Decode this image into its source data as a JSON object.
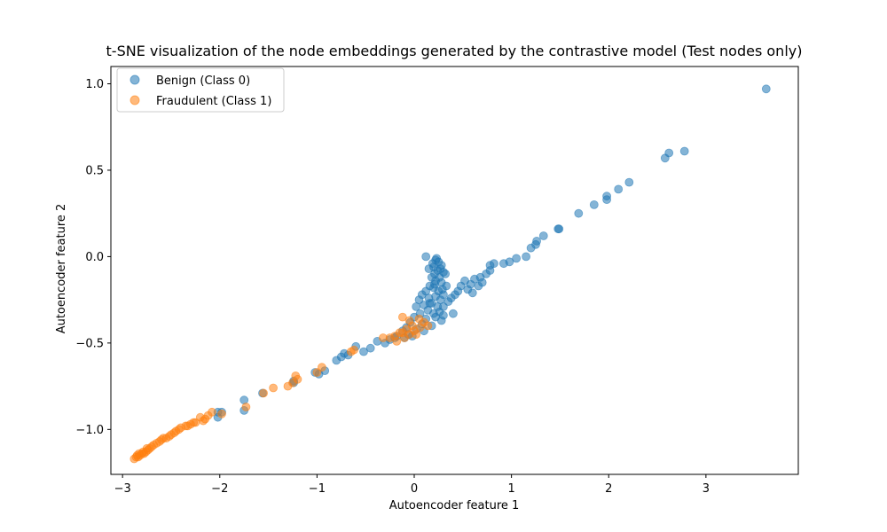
{
  "chart_data": {
    "type": "scatter",
    "title": "t-SNE visualization of the node embeddings generated by the contrastive model (Test nodes only)",
    "xlabel": "Autoencoder feature 1",
    "ylabel": "Autoencoder feature 2",
    "xlim": [
      -3.12,
      3.95
    ],
    "ylim": [
      -1.26,
      1.1
    ],
    "xticks": [
      -3,
      -2,
      -1,
      0,
      1,
      2,
      3
    ],
    "yticks": [
      -1.0,
      -0.5,
      0.0,
      0.5,
      1.0
    ],
    "xtick_labels": [
      "−3",
      "−2",
      "−1",
      "0",
      "1",
      "2",
      "3"
    ],
    "ytick_labels": [
      "−1.0",
      "−0.5",
      "0.0",
      "0.5",
      "1.0"
    ],
    "legend_position": "upper-left",
    "grid": false,
    "series": [
      {
        "name": "Benign (Class 0)",
        "color": "#1f77b4",
        "alpha": 0.55,
        "points": [
          [
            3.62,
            0.97
          ],
          [
            2.78,
            0.61
          ],
          [
            2.62,
            0.6
          ],
          [
            2.58,
            0.57
          ],
          [
            2.21,
            0.43
          ],
          [
            2.1,
            0.39
          ],
          [
            1.98,
            0.35
          ],
          [
            1.98,
            0.33
          ],
          [
            1.85,
            0.3
          ],
          [
            1.69,
            0.25
          ],
          [
            1.49,
            0.16
          ],
          [
            1.48,
            0.16
          ],
          [
            1.33,
            0.12
          ],
          [
            1.26,
            0.09
          ],
          [
            1.25,
            0.07
          ],
          [
            1.2,
            0.05
          ],
          [
            1.15,
            0.0
          ],
          [
            1.05,
            -0.01
          ],
          [
            0.98,
            -0.03
          ],
          [
            0.92,
            -0.04
          ],
          [
            0.82,
            -0.04
          ],
          [
            0.78,
            -0.05
          ],
          [
            0.78,
            -0.08
          ],
          [
            0.74,
            -0.1
          ],
          [
            0.68,
            -0.12
          ],
          [
            0.62,
            -0.13
          ],
          [
            0.58,
            -0.16
          ],
          [
            0.52,
            -0.14
          ],
          [
            0.48,
            -0.17
          ],
          [
            0.45,
            -0.2
          ],
          [
            0.42,
            -0.22
          ],
          [
            0.38,
            -0.24
          ],
          [
            0.35,
            -0.26
          ],
          [
            0.3,
            -0.29
          ],
          [
            0.4,
            -0.33
          ],
          [
            0.3,
            -0.34
          ],
          [
            0.28,
            -0.37
          ],
          [
            0.55,
            -0.19
          ],
          [
            0.6,
            -0.21
          ],
          [
            0.66,
            -0.17
          ],
          [
            0.7,
            -0.15
          ],
          [
            0.12,
            0.0
          ],
          [
            0.22,
            -0.02
          ],
          [
            0.25,
            -0.03
          ],
          [
            0.28,
            -0.05
          ],
          [
            0.2,
            -0.06
          ],
          [
            0.24,
            -0.08
          ],
          [
            0.15,
            -0.07
          ],
          [
            0.3,
            -0.09
          ],
          [
            0.32,
            -0.1
          ],
          [
            0.26,
            -0.12
          ],
          [
            0.18,
            -0.12
          ],
          [
            0.22,
            -0.14
          ],
          [
            0.28,
            -0.15
          ],
          [
            0.33,
            -0.17
          ],
          [
            0.16,
            -0.17
          ],
          [
            0.2,
            -0.18
          ],
          [
            0.25,
            -0.2
          ],
          [
            0.12,
            -0.2
          ],
          [
            0.3,
            -0.22
          ],
          [
            0.22,
            -0.23
          ],
          [
            0.08,
            -0.22
          ],
          [
            0.15,
            -0.24
          ],
          [
            0.27,
            -0.25
          ],
          [
            0.05,
            -0.25
          ],
          [
            0.18,
            -0.27
          ],
          [
            0.1,
            -0.28
          ],
          [
            0.24,
            -0.29
          ],
          [
            0.02,
            -0.29
          ],
          [
            0.14,
            -0.31
          ],
          [
            0.2,
            -0.33
          ],
          [
            0.06,
            -0.33
          ],
          [
            0.0,
            -0.35
          ],
          [
            0.12,
            -0.36
          ],
          [
            -0.04,
            -0.38
          ],
          [
            0.08,
            -0.39
          ],
          [
            -0.08,
            -0.41
          ],
          [
            0.02,
            -0.42
          ],
          [
            -0.12,
            -0.43
          ],
          [
            -0.06,
            -0.45
          ],
          [
            -0.18,
            -0.46
          ],
          [
            -0.1,
            -0.47
          ],
          [
            -0.25,
            -0.48
          ],
          [
            -0.02,
            -0.46
          ],
          [
            0.1,
            -0.43
          ],
          [
            0.18,
            -0.4
          ],
          [
            0.22,
            -0.35
          ],
          [
            0.26,
            -0.32
          ],
          [
            0.16,
            -0.27
          ],
          [
            0.21,
            -0.1
          ],
          [
            0.23,
            -0.01
          ],
          [
            0.19,
            -0.04
          ],
          [
            0.27,
            -0.07
          ],
          [
            0.21,
            -0.16
          ],
          [
            0.29,
            -0.19
          ],
          [
            -0.3,
            -0.5
          ],
          [
            -0.45,
            -0.53
          ],
          [
            -0.6,
            -0.52
          ],
          [
            -0.75,
            -0.58
          ],
          [
            -0.72,
            -0.56
          ],
          [
            -0.8,
            -0.6
          ],
          [
            -0.92,
            -0.66
          ],
          [
            -0.98,
            -0.68
          ],
          [
            -1.02,
            -0.67
          ],
          [
            -1.24,
            -0.72
          ],
          [
            -1.24,
            -0.73
          ],
          [
            -1.56,
            -0.79
          ],
          [
            -1.75,
            -0.83
          ],
          [
            -1.75,
            -0.89
          ],
          [
            -1.98,
            -0.9
          ],
          [
            -2.02,
            -0.9
          ],
          [
            -2.02,
            -0.93
          ],
          [
            -0.52,
            -0.55
          ],
          [
            -0.68,
            -0.57
          ],
          [
            -0.38,
            -0.49
          ],
          [
            -0.2,
            -0.47
          ]
        ]
      },
      {
        "name": "Fraudulent (Class 1)",
        "color": "#ff7f0e",
        "alpha": 0.55,
        "points": [
          [
            -0.12,
            -0.35
          ],
          [
            -0.05,
            -0.37
          ],
          [
            0.05,
            -0.36
          ],
          [
            0.1,
            -0.38
          ],
          [
            0.14,
            -0.4
          ],
          [
            -0.02,
            -0.4
          ],
          [
            0.06,
            -0.41
          ],
          [
            -0.08,
            -0.42
          ],
          [
            0.0,
            -0.43
          ],
          [
            -0.15,
            -0.44
          ],
          [
            -0.05,
            -0.45
          ],
          [
            -0.2,
            -0.46
          ],
          [
            -0.1,
            -0.47
          ],
          [
            -0.25,
            -0.47
          ],
          [
            -0.32,
            -0.47
          ],
          [
            -0.12,
            -0.44
          ],
          [
            0.02,
            -0.45
          ],
          [
            -0.18,
            -0.49
          ],
          [
            -0.65,
            -0.55
          ],
          [
            -0.62,
            -0.54
          ],
          [
            -1.0,
            -0.67
          ],
          [
            -0.95,
            -0.64
          ],
          [
            -1.22,
            -0.69
          ],
          [
            -1.2,
            -0.71
          ],
          [
            -1.25,
            -0.73
          ],
          [
            -1.3,
            -0.75
          ],
          [
            -1.45,
            -0.76
          ],
          [
            -1.55,
            -0.79
          ],
          [
            -1.73,
            -0.87
          ],
          [
            -1.98,
            -0.91
          ],
          [
            -2.08,
            -0.9
          ],
          [
            -2.12,
            -0.92
          ],
          [
            -2.17,
            -0.95
          ],
          [
            -2.2,
            -0.93
          ],
          [
            -2.25,
            -0.96
          ],
          [
            -2.3,
            -0.97
          ],
          [
            -2.35,
            -0.98
          ],
          [
            -2.42,
            -1.0
          ],
          [
            -2.45,
            -1.01
          ],
          [
            -2.5,
            -1.03
          ],
          [
            -2.55,
            -1.05
          ],
          [
            -2.6,
            -1.06
          ],
          [
            -2.65,
            -1.08
          ],
          [
            -2.68,
            -1.09
          ],
          [
            -2.7,
            -1.1
          ],
          [
            -2.72,
            -1.11
          ],
          [
            -2.74,
            -1.12
          ],
          [
            -2.76,
            -1.13
          ],
          [
            -2.78,
            -1.14
          ],
          [
            -2.8,
            -1.14
          ],
          [
            -2.82,
            -1.15
          ],
          [
            -2.84,
            -1.16
          ],
          [
            -2.86,
            -1.16
          ],
          [
            -2.88,
            -1.17
          ],
          [
            -2.85,
            -1.15
          ],
          [
            -2.83,
            -1.14
          ],
          [
            -2.79,
            -1.13
          ],
          [
            -2.75,
            -1.11
          ],
          [
            -2.62,
            -1.07
          ],
          [
            -2.58,
            -1.05
          ],
          [
            -2.52,
            -1.04
          ],
          [
            -2.47,
            -1.02
          ],
          [
            -2.4,
            -0.99
          ],
          [
            -2.33,
            -0.98
          ],
          [
            -2.27,
            -0.96
          ],
          [
            -2.15,
            -0.94
          ]
        ]
      }
    ]
  }
}
